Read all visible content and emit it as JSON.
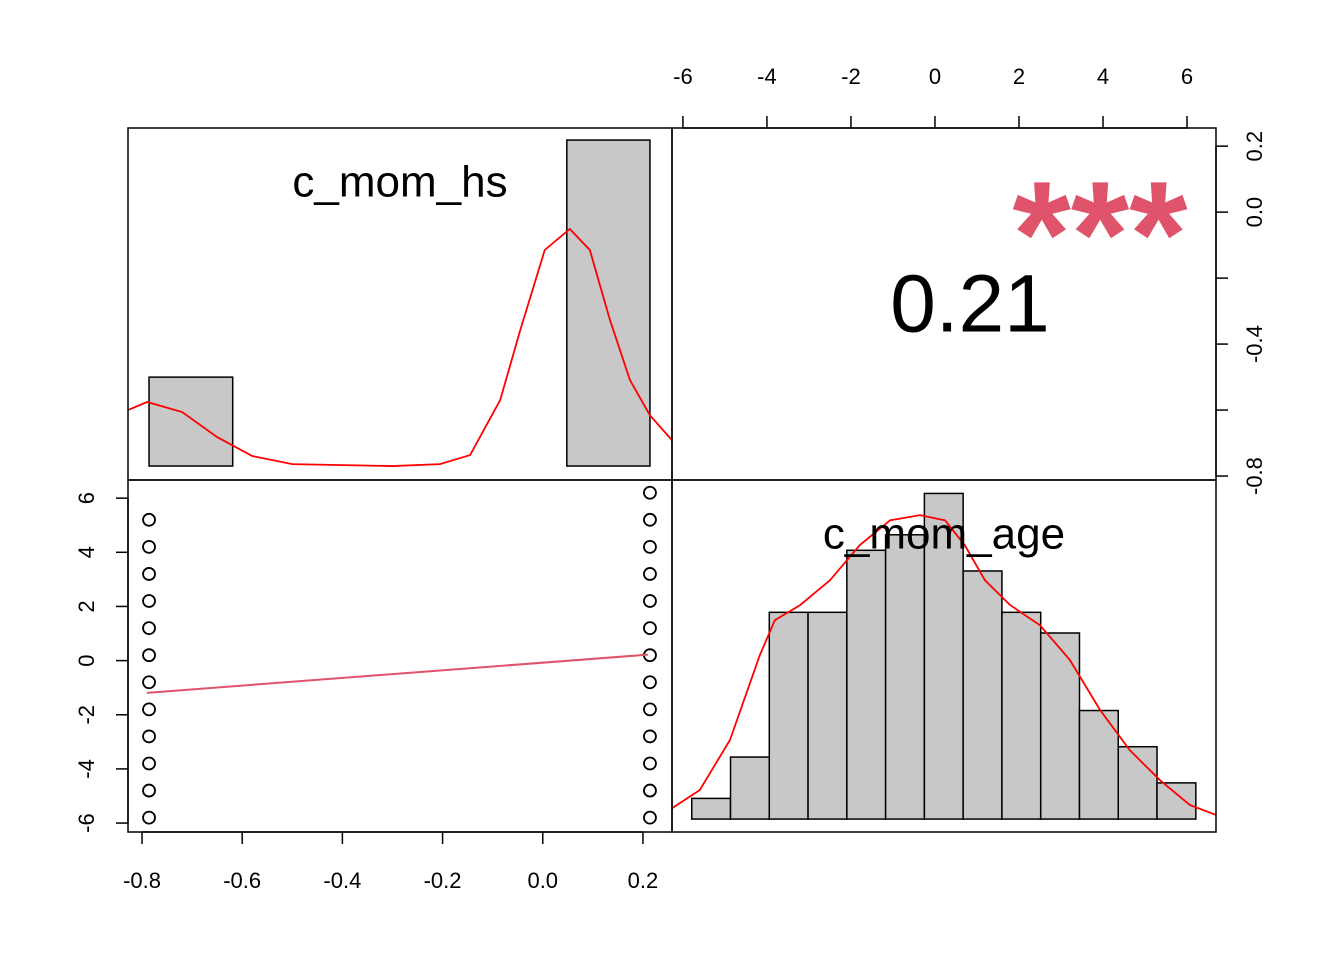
{
  "chart_data": [
    {
      "type": "histogram",
      "title": "c_mom_hs",
      "bins": [
        -0.786,
        -0.619,
        -0.452,
        -0.286,
        -0.119,
        0.048,
        0.214
      ],
      "counts": [
        93,
        0,
        0,
        0,
        0,
        341
      ],
      "color": "#c8c8c8",
      "density": {
        "x": [
          -0.828,
          -0.79,
          -0.72,
          -0.65,
          -0.58,
          -0.5,
          -0.3,
          -0.205,
          -0.145,
          -0.085,
          -0.045,
          0.004,
          0.054,
          0.094,
          0.134,
          0.174,
          0.214,
          0.258
        ],
        "values": [
          58.6,
          67,
          56.5,
          30.3,
          10.5,
          2,
          0,
          2,
          11.5,
          69,
          142,
          226,
          248,
          226,
          153,
          90,
          53,
          27
        ],
        "color": "#ff0000"
      },
      "xlim": [
        -0.828,
        0.258
      ],
      "ylim": [
        -14.6,
        353.6
      ]
    },
    {
      "type": "correlation",
      "correlation": 0.21,
      "significance": "***",
      "significance_color": "#df536b",
      "xlim": [
        -6.26,
        6.69
      ],
      "xticks": [
        -6,
        -4,
        -2,
        0,
        2,
        4,
        6
      ],
      "ylim": [
        -0.812,
        0.255
      ],
      "yticks": [
        {
          "value": 0.2,
          "label": "0.2"
        },
        {
          "value": 0,
          "label": "0.0"
        },
        {
          "value": -0.2,
          "label": null
        },
        {
          "value": -0.4,
          "label": "-0.4"
        },
        {
          "value": -0.6,
          "label": null
        },
        {
          "value": -0.8,
          "label": "-0.8"
        }
      ]
    },
    {
      "type": "scatter",
      "x": [
        -0.786,
        -0.786,
        -0.786,
        -0.786,
        -0.786,
        -0.786,
        -0.786,
        -0.786,
        -0.786,
        -0.786,
        -0.786,
        -0.786,
        0.214,
        0.214,
        0.214,
        0.214,
        0.214,
        0.214,
        0.214,
        0.214,
        0.214,
        0.214,
        0.214,
        0.214,
        0.214
      ],
      "values": [
        5.2,
        4.2,
        3.2,
        2.2,
        1.2,
        0.2,
        -0.8,
        -1.8,
        -2.8,
        -3.8,
        -4.8,
        -5.8,
        6.2,
        5.2,
        4.2,
        3.2,
        2.2,
        1.2,
        0.2,
        -0.8,
        -1.8,
        -2.8,
        -3.8,
        -4.8,
        -5.8
      ],
      "fit": {
        "x": [
          -0.79,
          0.21
        ],
        "values": [
          -1.19,
          0.22
        ],
        "color": "#df536b"
      },
      "xlim": [
        -0.828,
        0.258
      ],
      "xticks": [
        {
          "value": -0.8,
          "label": "-0.8"
        },
        {
          "value": -0.6,
          "label": "-0.6"
        },
        {
          "value": -0.4,
          "label": "-0.4"
        },
        {
          "value": -0.2,
          "label": "-0.2"
        },
        {
          "value": 0,
          "label": "0.0"
        },
        {
          "value": 0.2,
          "label": "0.2"
        }
      ],
      "ylim": [
        -6.33,
        6.67
      ],
      "yticks": [
        6,
        4,
        2,
        0,
        -2,
        -4,
        -6
      ]
    },
    {
      "type": "histogram",
      "title": "c_mom_age",
      "bins": [
        -5.79,
        -4.867,
        -3.944,
        -3.021,
        -2.098,
        -1.175,
        -0.252,
        0.671,
        1.594,
        2.517,
        3.44,
        4.363,
        5.286,
        6.21
      ],
      "counts": [
        4,
        12,
        40,
        40,
        52,
        55,
        63,
        48,
        40,
        36,
        21,
        14,
        7
      ],
      "color": "#c8c8c8",
      "density": {
        "x": [
          -6.26,
          -5.6,
          -4.88,
          -4.17,
          -3.81,
          -3.21,
          -2.5,
          -1.79,
          -1.07,
          -0.36,
          0.24,
          0.71,
          1.19,
          1.79,
          2.5,
          3.21,
          3.93,
          4.64,
          5.36,
          6.07,
          6.69
        ],
        "values": [
          2.1,
          5.6,
          15.3,
          31.7,
          38.5,
          41.4,
          46.2,
          53,
          57.8,
          58.8,
          57.8,
          53,
          46.2,
          41.4,
          37.5,
          30.8,
          21.1,
          13.3,
          7.5,
          2.7,
          0.8
        ],
        "color": "#ff0000"
      },
      "xlim": [
        -6.26,
        6.69
      ],
      "ylim": [
        -2.5,
        65.6
      ]
    }
  ]
}
